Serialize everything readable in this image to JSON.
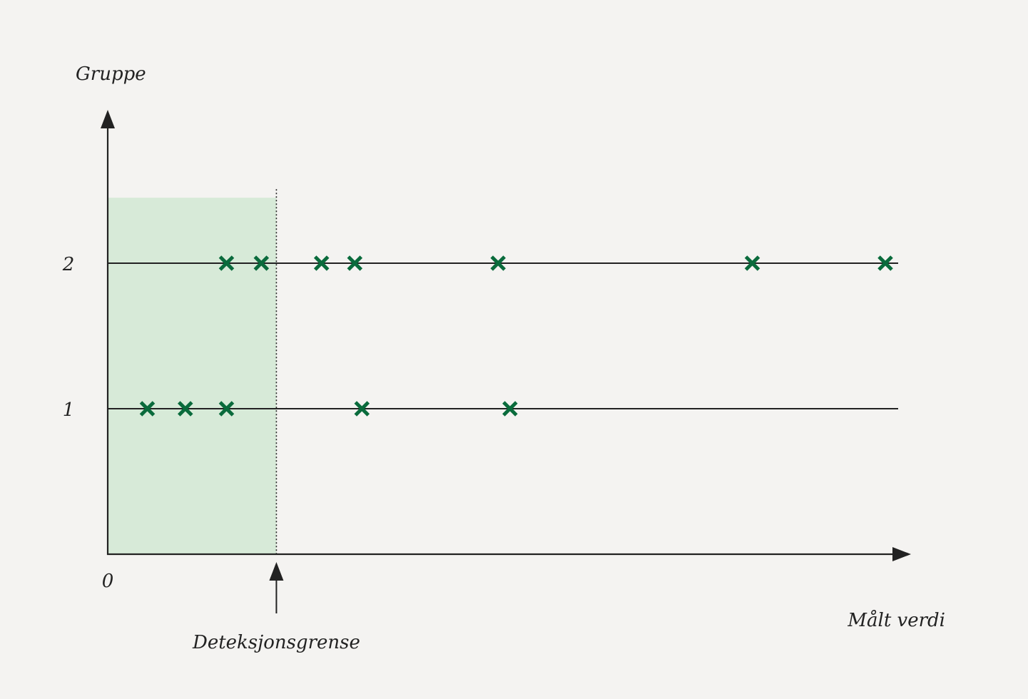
{
  "chart_data": {
    "type": "scatter",
    "title": "",
    "xlabel": "Målt verdi",
    "ylabel": "Gruppe",
    "x_origin_label": "0",
    "xlim": [
      0,
      100
    ],
    "ylim": [
      0,
      2.45
    ],
    "y_ticks": [
      {
        "value": 1,
        "label": "1"
      },
      {
        "value": 2,
        "label": "2"
      }
    ],
    "marker": "x",
    "grid": false,
    "detection_limit": {
      "value": 21.3,
      "label": "Deteksjonsgrense"
    },
    "series": [
      {
        "group": 1,
        "x": [
          5,
          9.8,
          15,
          32.1,
          50.8
        ]
      },
      {
        "group": 2,
        "x": [
          15,
          19.4,
          27,
          31.2,
          49.3,
          81.4,
          98.2
        ]
      }
    ],
    "colors": {
      "marker": "#0a6b3c",
      "shade": "#d7ead8",
      "axis": "#222222",
      "background": "#f4f3f1"
    }
  }
}
